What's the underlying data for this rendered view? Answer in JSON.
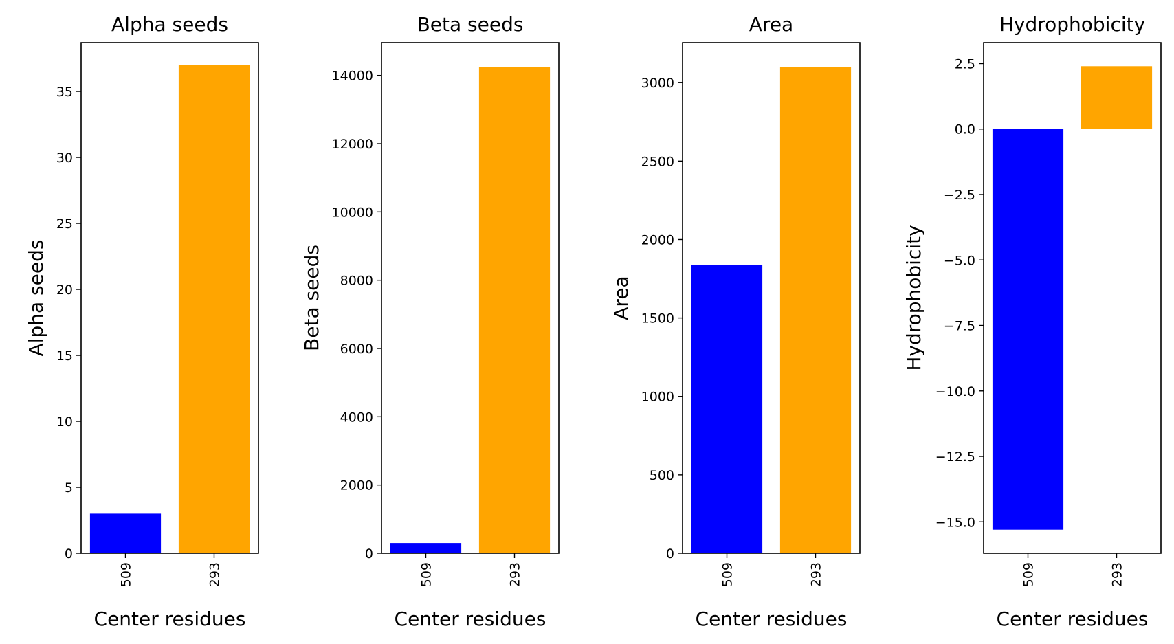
{
  "chart_data": [
    {
      "type": "bar",
      "title": "Alpha seeds",
      "xlabel": "Center residues",
      "ylabel": "Alpha seeds",
      "categories": [
        "509",
        "293"
      ],
      "values": [
        3,
        37
      ],
      "colors": [
        "#0000ff",
        "#ffa500"
      ],
      "ylim": [
        0,
        38.7
      ],
      "yticks": [
        0,
        5,
        10,
        15,
        20,
        25,
        30,
        35
      ],
      "ytick_labels": [
        "0",
        "5",
        "10",
        "15",
        "20",
        "25",
        "30",
        "35"
      ],
      "grid": false
    },
    {
      "type": "bar",
      "title": "Beta seeds",
      "xlabel": "Center residues",
      "ylabel": "Beta seeds",
      "categories": [
        "509",
        "293"
      ],
      "values": [
        300,
        14250
      ],
      "colors": [
        "#0000ff",
        "#ffa500"
      ],
      "ylim": [
        0,
        14960
      ],
      "yticks": [
        0,
        2000,
        4000,
        6000,
        8000,
        10000,
        12000,
        14000
      ],
      "ytick_labels": [
        "0",
        "2000",
        "4000",
        "6000",
        "8000",
        "10000",
        "12000",
        "14000"
      ],
      "grid": false
    },
    {
      "type": "bar",
      "title": "Area",
      "xlabel": "Center residues",
      "ylabel": "Area",
      "categories": [
        "509",
        "293"
      ],
      "values": [
        1840,
        3100
      ],
      "colors": [
        "#0000ff",
        "#ffa500"
      ],
      "ylim": [
        0,
        3255
      ],
      "yticks": [
        0,
        500,
        1000,
        1500,
        2000,
        2500,
        3000
      ],
      "ytick_labels": [
        "0",
        "500",
        "1000",
        "1500",
        "2000",
        "2500",
        "3000"
      ],
      "grid": false
    },
    {
      "type": "bar",
      "title": "Hydrophobicity",
      "xlabel": "Center residues",
      "ylabel": "Hydrophobicity",
      "categories": [
        "509",
        "293"
      ],
      "values": [
        -15.3,
        2.4
      ],
      "colors": [
        "#0000ff",
        "#ffa500"
      ],
      "ylim": [
        -16.2,
        3.3
      ],
      "yticks": [
        -15.0,
        -12.5,
        -10.0,
        -7.5,
        -5.0,
        -2.5,
        0.0,
        2.5
      ],
      "ytick_labels": [
        "−15.0",
        "−12.5",
        "−10.0",
        "−7.5",
        "−5.0",
        "−2.5",
        "0.0",
        "2.5"
      ],
      "grid": false
    }
  ]
}
